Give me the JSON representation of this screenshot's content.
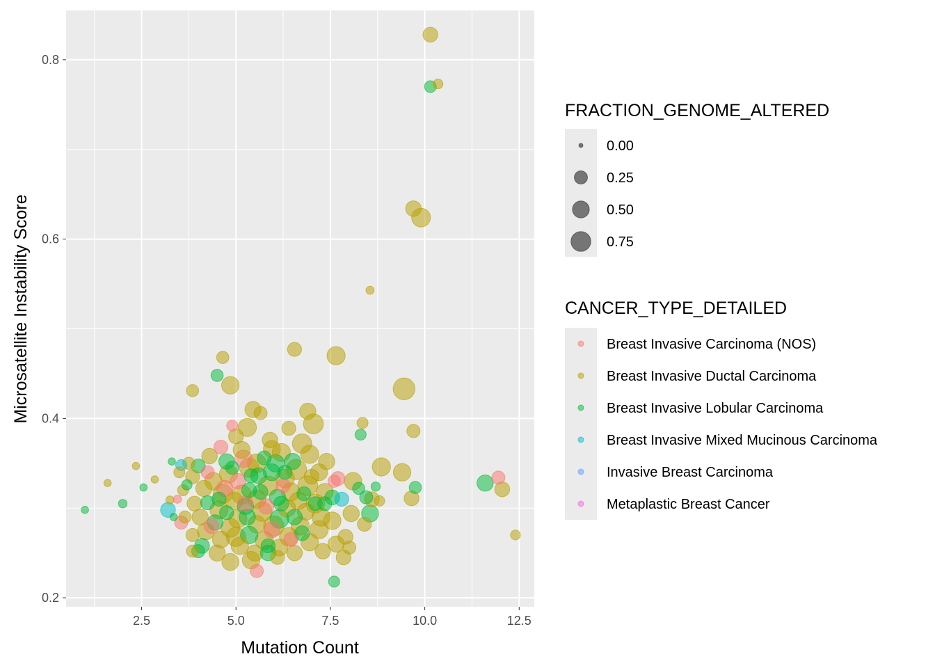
{
  "chart_data": {
    "type": "scatter",
    "title": "",
    "xlabel": "Mutation Count",
    "ylabel": "Microsatellite Instability Score",
    "xlim": [
      0.5,
      12.9
    ],
    "ylim": [
      0.19,
      0.855
    ],
    "x_ticks": [
      2.5,
      5.0,
      7.5,
      10.0,
      12.5
    ],
    "x_tick_labels": [
      "2.5",
      "5.0",
      "7.5",
      "10.0",
      "12.5"
    ],
    "y_ticks": [
      0.2,
      0.4,
      0.6,
      0.8
    ],
    "y_tick_labels": [
      "0.2",
      "0.4",
      "0.6",
      "0.8"
    ],
    "grid": true,
    "panel_background": "#EBEBEB",
    "point_alpha": 0.5,
    "size_legend": {
      "title": "FRACTION_GENOME_ALTERED",
      "values": [
        0.0,
        0.25,
        0.5,
        0.75
      ],
      "labels": [
        "0.00",
        "0.25",
        "0.50",
        "0.75"
      ]
    },
    "color_legend": {
      "title": "CANCER_TYPE_DETAILED",
      "categories": [
        {
          "name": "Breast Invasive Carcinoma (NOS)",
          "color": "#F8766D"
        },
        {
          "name": "Breast Invasive Ductal Carcinoma",
          "color": "#B79F00"
        },
        {
          "name": "Breast Invasive Lobular Carcinoma",
          "color": "#00BA38"
        },
        {
          "name": "Breast Invasive Mixed Mucinous Carcinoma",
          "color": "#00BFC4"
        },
        {
          "name": "Invasive Breast Carcinoma",
          "color": "#619CFF"
        },
        {
          "name": "Metaplastic Breast Cancer",
          "color": "#F564E3"
        }
      ]
    },
    "legend_position": "right",
    "points": [
      {
        "x": 10.15,
        "y": 0.828,
        "s": 0.35,
        "t": 1
      },
      {
        "x": 10.15,
        "y": 0.77,
        "s": 0.18,
        "t": 2
      },
      {
        "x": 10.35,
        "y": 0.773,
        "s": 0.1,
        "t": 1
      },
      {
        "x": 9.7,
        "y": 0.634,
        "s": 0.4,
        "t": 1
      },
      {
        "x": 9.9,
        "y": 0.624,
        "s": 0.65,
        "t": 1
      },
      {
        "x": 8.55,
        "y": 0.543,
        "s": 0.05,
        "t": 1
      },
      {
        "x": 6.55,
        "y": 0.477,
        "s": 0.3,
        "t": 1
      },
      {
        "x": 7.65,
        "y": 0.47,
        "s": 0.6,
        "t": 1
      },
      {
        "x": 4.65,
        "y": 0.468,
        "s": 0.2,
        "t": 1
      },
      {
        "x": 4.5,
        "y": 0.448,
        "s": 0.2,
        "t": 2
      },
      {
        "x": 4.85,
        "y": 0.437,
        "s": 0.55,
        "t": 1
      },
      {
        "x": 9.45,
        "y": 0.433,
        "s": 0.95,
        "t": 1
      },
      {
        "x": 3.85,
        "y": 0.431,
        "s": 0.2,
        "t": 1
      },
      {
        "x": 6.9,
        "y": 0.408,
        "s": 0.45,
        "t": 1
      },
      {
        "x": 5.45,
        "y": 0.41,
        "s": 0.45,
        "t": 1
      },
      {
        "x": 5.65,
        "y": 0.406,
        "s": 0.25,
        "t": 1
      },
      {
        "x": 7.05,
        "y": 0.394,
        "s": 0.75,
        "t": 1
      },
      {
        "x": 5.3,
        "y": 0.39,
        "s": 0.6,
        "t": 1
      },
      {
        "x": 4.9,
        "y": 0.392,
        "s": 0.15,
        "t": 0
      },
      {
        "x": 6.4,
        "y": 0.389,
        "s": 0.3,
        "t": 1
      },
      {
        "x": 8.35,
        "y": 0.395,
        "s": 0.15,
        "t": 1
      },
      {
        "x": 9.7,
        "y": 0.386,
        "s": 0.25,
        "t": 1
      },
      {
        "x": 8.3,
        "y": 0.382,
        "s": 0.15,
        "t": 2
      },
      {
        "x": 5.0,
        "y": 0.38,
        "s": 0.35,
        "t": 1
      },
      {
        "x": 5.9,
        "y": 0.376,
        "s": 0.4,
        "t": 1
      },
      {
        "x": 6.75,
        "y": 0.372,
        "s": 0.7,
        "t": 1
      },
      {
        "x": 4.6,
        "y": 0.368,
        "s": 0.3,
        "t": 0
      },
      {
        "x": 5.15,
        "y": 0.365,
        "s": 0.5,
        "t": 1
      },
      {
        "x": 6.2,
        "y": 0.362,
        "s": 0.6,
        "t": 1
      },
      {
        "x": 4.3,
        "y": 0.358,
        "s": 0.4,
        "t": 1
      },
      {
        "x": 5.75,
        "y": 0.356,
        "s": 0.3,
        "t": 2
      },
      {
        "x": 7.4,
        "y": 0.352,
        "s": 0.45,
        "t": 1
      },
      {
        "x": 3.75,
        "y": 0.35,
        "s": 0.2,
        "t": 1
      },
      {
        "x": 3.55,
        "y": 0.348,
        "s": 0.15,
        "t": 3
      },
      {
        "x": 6.05,
        "y": 0.35,
        "s": 0.55,
        "t": 2
      },
      {
        "x": 8.85,
        "y": 0.346,
        "s": 0.6,
        "t": 1
      },
      {
        "x": 5.35,
        "y": 0.345,
        "s": 0.7,
        "t": 1
      },
      {
        "x": 4.0,
        "y": 0.347,
        "s": 0.3,
        "t": 2
      },
      {
        "x": 6.6,
        "y": 0.343,
        "s": 0.8,
        "t": 1
      },
      {
        "x": 7.2,
        "y": 0.34,
        "s": 0.5,
        "t": 1
      },
      {
        "x": 4.8,
        "y": 0.338,
        "s": 0.6,
        "t": 1
      },
      {
        "x": 9.4,
        "y": 0.34,
        "s": 0.55,
        "t": 1
      },
      {
        "x": 3.85,
        "y": 0.335,
        "s": 0.3,
        "t": 1
      },
      {
        "x": 5.6,
        "y": 0.336,
        "s": 0.45,
        "t": 2
      },
      {
        "x": 6.3,
        "y": 0.333,
        "s": 0.65,
        "t": 1
      },
      {
        "x": 7.7,
        "y": 0.333,
        "s": 0.3,
        "t": 0
      },
      {
        "x": 8.1,
        "y": 0.33,
        "s": 0.55,
        "t": 1
      },
      {
        "x": 4.4,
        "y": 0.33,
        "s": 0.55,
        "t": 1
      },
      {
        "x": 5.05,
        "y": 0.33,
        "s": 0.4,
        "t": 0
      },
      {
        "x": 11.6,
        "y": 0.328,
        "s": 0.45,
        "t": 2
      },
      {
        "x": 11.95,
        "y": 0.334,
        "s": 0.25,
        "t": 0
      },
      {
        "x": 12.05,
        "y": 0.321,
        "s": 0.35,
        "t": 1
      },
      {
        "x": 8.25,
        "y": 0.322,
        "s": 0.2,
        "t": 2
      },
      {
        "x": 9.75,
        "y": 0.323,
        "s": 0.2,
        "t": 2
      },
      {
        "x": 8.7,
        "y": 0.324,
        "s": 0.08,
        "t": 2
      },
      {
        "x": 5.85,
        "y": 0.325,
        "s": 0.7,
        "t": 1
      },
      {
        "x": 6.9,
        "y": 0.325,
        "s": 0.75,
        "t": 1
      },
      {
        "x": 4.15,
        "y": 0.322,
        "s": 0.45,
        "t": 1
      },
      {
        "x": 5.35,
        "y": 0.32,
        "s": 0.35,
        "t": 2
      },
      {
        "x": 6.45,
        "y": 0.318,
        "s": 0.6,
        "t": 1
      },
      {
        "x": 7.35,
        "y": 0.318,
        "s": 0.5,
        "t": 1
      },
      {
        "x": 4.65,
        "y": 0.316,
        "s": 0.7,
        "t": 1
      },
      {
        "x": 3.6,
        "y": 0.32,
        "s": 0.15,
        "t": 1
      },
      {
        "x": 3.7,
        "y": 0.326,
        "s": 0.12,
        "t": 2
      },
      {
        "x": 8.45,
        "y": 0.312,
        "s": 0.25,
        "t": 2
      },
      {
        "x": 8.6,
        "y": 0.31,
        "s": 0.35,
        "t": 1
      },
      {
        "x": 9.65,
        "y": 0.311,
        "s": 0.35,
        "t": 1
      },
      {
        "x": 7.55,
        "y": 0.312,
        "s": 0.35,
        "t": 2
      },
      {
        "x": 7.8,
        "y": 0.31,
        "s": 0.3,
        "t": 3
      },
      {
        "x": 5.55,
        "y": 0.31,
        "s": 0.6,
        "t": 1
      },
      {
        "x": 6.1,
        "y": 0.312,
        "s": 0.45,
        "t": 2
      },
      {
        "x": 6.65,
        "y": 0.308,
        "s": 0.55,
        "t": 1
      },
      {
        "x": 4.95,
        "y": 0.308,
        "s": 0.55,
        "t": 1
      },
      {
        "x": 4.25,
        "y": 0.306,
        "s": 0.3,
        "t": 2
      },
      {
        "x": 3.9,
        "y": 0.305,
        "s": 0.35,
        "t": 1
      },
      {
        "x": 8.8,
        "y": 0.308,
        "s": 0.12,
        "t": 1
      },
      {
        "x": 7.1,
        "y": 0.305,
        "s": 0.65,
        "t": 1
      },
      {
        "x": 5.25,
        "y": 0.302,
        "s": 0.45,
        "t": 2
      },
      {
        "x": 6.35,
        "y": 0.3,
        "s": 0.55,
        "t": 1
      },
      {
        "x": 7.35,
        "y": 0.305,
        "s": 0.3,
        "t": 2
      },
      {
        "x": 3.2,
        "y": 0.298,
        "s": 0.35,
        "t": 3
      },
      {
        "x": 3.25,
        "y": 0.309,
        "s": 0.05,
        "t": 1
      },
      {
        "x": 3.45,
        "y": 0.31,
        "s": 0.05,
        "t": 0
      },
      {
        "x": 4.55,
        "y": 0.298,
        "s": 0.6,
        "t": 1
      },
      {
        "x": 5.7,
        "y": 0.296,
        "s": 0.7,
        "t": 1
      },
      {
        "x": 6.85,
        "y": 0.296,
        "s": 0.5,
        "t": 1
      },
      {
        "x": 8.55,
        "y": 0.294,
        "s": 0.5,
        "t": 2
      },
      {
        "x": 8.05,
        "y": 0.294,
        "s": 0.45,
        "t": 1
      },
      {
        "x": 3.65,
        "y": 0.29,
        "s": 0.2,
        "t": 1
      },
      {
        "x": 4.05,
        "y": 0.29,
        "s": 0.45,
        "t": 1
      },
      {
        "x": 5.05,
        "y": 0.288,
        "s": 0.6,
        "t": 1
      },
      {
        "x": 6.15,
        "y": 0.288,
        "s": 0.65,
        "t": 2
      },
      {
        "x": 7.55,
        "y": 0.286,
        "s": 0.55,
        "t": 1
      },
      {
        "x": 4.45,
        "y": 0.284,
        "s": 0.4,
        "t": 2
      },
      {
        "x": 3.55,
        "y": 0.284,
        "s": 0.25,
        "t": 0
      },
      {
        "x": 5.55,
        "y": 0.282,
        "s": 0.55,
        "t": 1
      },
      {
        "x": 6.7,
        "y": 0.28,
        "s": 0.6,
        "t": 1
      },
      {
        "x": 8.4,
        "y": 0.282,
        "s": 0.3,
        "t": 1
      },
      {
        "x": 4.85,
        "y": 0.278,
        "s": 0.65,
        "t": 1
      },
      {
        "x": 5.95,
        "y": 0.276,
        "s": 0.45,
        "t": 0
      },
      {
        "x": 7.2,
        "y": 0.276,
        "s": 0.6,
        "t": 1
      },
      {
        "x": 4.2,
        "y": 0.274,
        "s": 0.5,
        "t": 1
      },
      {
        "x": 3.85,
        "y": 0.27,
        "s": 0.25,
        "t": 1
      },
      {
        "x": 5.35,
        "y": 0.27,
        "s": 0.55,
        "t": 2
      },
      {
        "x": 6.4,
        "y": 0.268,
        "s": 0.65,
        "t": 1
      },
      {
        "x": 7.9,
        "y": 0.268,
        "s": 0.35,
        "t": 1
      },
      {
        "x": 12.4,
        "y": 0.27,
        "s": 0.1,
        "t": 1
      },
      {
        "x": 4.6,
        "y": 0.265,
        "s": 0.5,
        "t": 1
      },
      {
        "x": 5.75,
        "y": 0.264,
        "s": 0.6,
        "t": 1
      },
      {
        "x": 6.95,
        "y": 0.262,
        "s": 0.55,
        "t": 1
      },
      {
        "x": 7.65,
        "y": 0.26,
        "s": 0.45,
        "t": 1
      },
      {
        "x": 4.1,
        "y": 0.258,
        "s": 0.35,
        "t": 2
      },
      {
        "x": 5.1,
        "y": 0.258,
        "s": 0.55,
        "t": 1
      },
      {
        "x": 6.15,
        "y": 0.256,
        "s": 0.5,
        "t": 1
      },
      {
        "x": 8.0,
        "y": 0.256,
        "s": 0.25,
        "t": 1
      },
      {
        "x": 3.85,
        "y": 0.252,
        "s": 0.2,
        "t": 1
      },
      {
        "x": 4.5,
        "y": 0.25,
        "s": 0.45,
        "t": 1
      },
      {
        "x": 5.5,
        "y": 0.25,
        "s": 0.45,
        "t": 1
      },
      {
        "x": 5.85,
        "y": 0.25,
        "s": 0.4,
        "t": 2
      },
      {
        "x": 6.55,
        "y": 0.25,
        "s": 0.4,
        "t": 1
      },
      {
        "x": 7.3,
        "y": 0.252,
        "s": 0.4,
        "t": 1
      },
      {
        "x": 4.0,
        "y": 0.252,
        "s": 0.25,
        "t": 2
      },
      {
        "x": 7.85,
        "y": 0.245,
        "s": 0.35,
        "t": 1
      },
      {
        "x": 4.85,
        "y": 0.24,
        "s": 0.5,
        "t": 1
      },
      {
        "x": 5.4,
        "y": 0.242,
        "s": 0.55,
        "t": 1
      },
      {
        "x": 6.1,
        "y": 0.245,
        "s": 0.3,
        "t": 1
      },
      {
        "x": 5.55,
        "y": 0.23,
        "s": 0.25,
        "t": 0
      },
      {
        "x": 7.6,
        "y": 0.218,
        "s": 0.15,
        "t": 2
      },
      {
        "x": 3.5,
        "y": 0.34,
        "s": 0.15,
        "t": 1
      },
      {
        "x": 3.3,
        "y": 0.352,
        "s": 0.03,
        "t": 2
      },
      {
        "x": 2.35,
        "y": 0.347,
        "s": 0.03,
        "t": 1
      },
      {
        "x": 2.85,
        "y": 0.332,
        "s": 0.03,
        "t": 1
      },
      {
        "x": 2.55,
        "y": 0.323,
        "s": 0.03,
        "t": 2
      },
      {
        "x": 1.6,
        "y": 0.328,
        "s": 0.03,
        "t": 1
      },
      {
        "x": 2.0,
        "y": 0.305,
        "s": 0.06,
        "t": 2
      },
      {
        "x": 1.0,
        "y": 0.298,
        "s": 0.03,
        "t": 2
      },
      {
        "x": 3.35,
        "y": 0.29,
        "s": 0.03,
        "t": 2
      },
      {
        "x": 5.2,
        "y": 0.355,
        "s": 0.55,
        "t": 0
      },
      {
        "x": 4.75,
        "y": 0.352,
        "s": 0.4,
        "t": 2
      },
      {
        "x": 5.95,
        "y": 0.34,
        "s": 0.5,
        "t": 2
      },
      {
        "x": 6.5,
        "y": 0.352,
        "s": 0.45,
        "t": 2
      },
      {
        "x": 4.7,
        "y": 0.322,
        "s": 0.45,
        "t": 0
      },
      {
        "x": 5.65,
        "y": 0.318,
        "s": 0.35,
        "t": 2
      },
      {
        "x": 6.25,
        "y": 0.325,
        "s": 0.3,
        "t": 0
      },
      {
        "x": 5.3,
        "y": 0.29,
        "s": 0.45,
        "t": 2
      },
      {
        "x": 5.8,
        "y": 0.302,
        "s": 0.4,
        "t": 0
      },
      {
        "x": 6.55,
        "y": 0.29,
        "s": 0.4,
        "t": 2
      },
      {
        "x": 4.35,
        "y": 0.28,
        "s": 0.35,
        "t": 0
      },
      {
        "x": 6.8,
        "y": 0.316,
        "s": 0.3,
        "t": 2
      },
      {
        "x": 7.0,
        "y": 0.335,
        "s": 0.35,
        "t": 1
      },
      {
        "x": 7.6,
        "y": 0.33,
        "s": 0.2,
        "t": 0
      },
      {
        "x": 4.25,
        "y": 0.34,
        "s": 0.25,
        "t": 0
      },
      {
        "x": 5.55,
        "y": 0.35,
        "s": 0.65,
        "t": 1
      },
      {
        "x": 5.95,
        "y": 0.366,
        "s": 0.5,
        "t": 1
      },
      {
        "x": 6.95,
        "y": 0.36,
        "s": 0.6,
        "t": 1
      },
      {
        "x": 7.25,
        "y": 0.29,
        "s": 0.6,
        "t": 1
      },
      {
        "x": 5.15,
        "y": 0.315,
        "s": 0.7,
        "t": 1
      },
      {
        "x": 6.0,
        "y": 0.28,
        "s": 0.8,
        "t": 1
      },
      {
        "x": 5.0,
        "y": 0.268,
        "s": 0.7,
        "t": 1
      },
      {
        "x": 4.75,
        "y": 0.295,
        "s": 0.3,
        "t": 2
      },
      {
        "x": 6.75,
        "y": 0.272,
        "s": 0.35,
        "t": 2
      },
      {
        "x": 7.1,
        "y": 0.305,
        "s": 0.3,
        "t": 2
      },
      {
        "x": 5.4,
        "y": 0.336,
        "s": 0.3,
        "t": 2
      },
      {
        "x": 6.2,
        "y": 0.305,
        "s": 0.35,
        "t": 2
      },
      {
        "x": 4.55,
        "y": 0.31,
        "s": 0.3,
        "t": 2
      },
      {
        "x": 5.85,
        "y": 0.258,
        "s": 0.3,
        "t": 2
      },
      {
        "x": 4.9,
        "y": 0.345,
        "s": 0.25,
        "t": 2
      },
      {
        "x": 6.3,
        "y": 0.34,
        "s": 0.3,
        "t": 2
      },
      {
        "x": 5.25,
        "y": 0.305,
        "s": 0.4,
        "t": 0
      },
      {
        "x": 6.45,
        "y": 0.265,
        "s": 0.3,
        "t": 0
      }
    ]
  }
}
